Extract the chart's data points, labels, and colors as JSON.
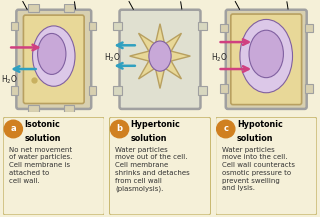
{
  "bg_color": "#f5f0d8",
  "cell_bg": "#e8d8a0",
  "cell_bg_light": "#f0ead0",
  "cell_wall_color": "#c8b870",
  "membrane_color": "#b8a060",
  "cytoplasm_color": "#e8d898",
  "vacuole_color": "#dcc8e8",
  "nucleus_color": "#c8a8d8",
  "nucleus_border": "#8060a0",
  "arrow_pink": "#d04080",
  "arrow_blue": "#30a0c0",
  "text_color": "#222222",
  "label_color": "#222222",
  "panel_bg": "#f5f0d8",
  "panel_border": "#c8b870",
  "circle_color": "#d08020",
  "titles": [
    "Isotonic\nsolution",
    "Hypertonic\nsolution",
    "Hypotonic\nsolution"
  ],
  "labels": [
    "a",
    "b",
    "c"
  ],
  "descriptions": [
    "No net movement\nof water particles.\nCell membrane is\nattached to\ncell wall.",
    "Water particles\nmove out of the cell.\nCell membrane\nshrinks and detaches\nfrom cell wall\n(plasmolysis).",
    "Water particles\nmove into the cell.\nCell wall counteracts\nosmotic pressure to\nprevent swelling\nand lysis."
  ],
  "figsize": [
    3.2,
    2.17
  ],
  "dpi": 100
}
